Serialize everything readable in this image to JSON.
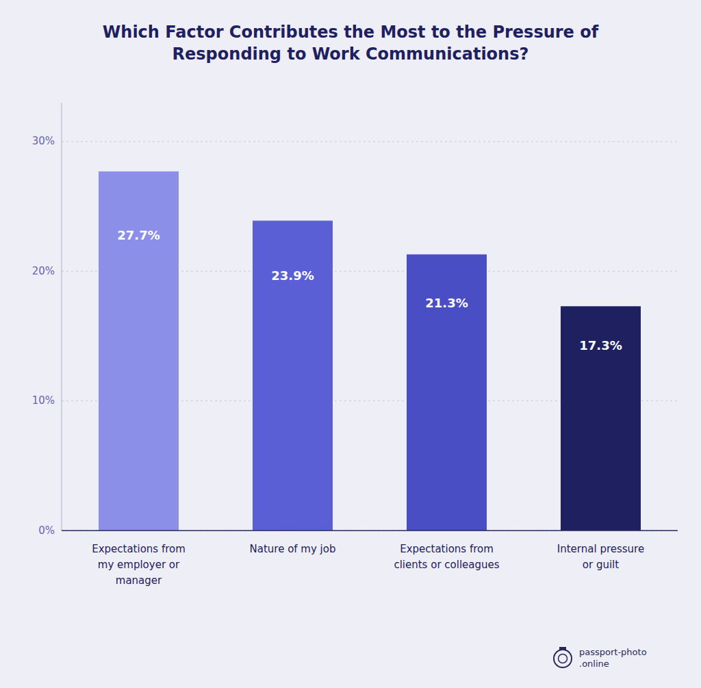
{
  "chart_data": {
    "type": "bar",
    "title": "Which Factor Contributes the Most to the Pressure of\nResponding to Work Communications?",
    "categories": [
      "Expectations from\nmy employer or\nmanager",
      "Nature of my job",
      "Expectations from\nclients or colleagues",
      "Internal pressure\nor guilt"
    ],
    "values": [
      27.7,
      23.9,
      21.3,
      17.3
    ],
    "value_labels": [
      "27.7%",
      "23.9%",
      "21.3%",
      "17.3%"
    ],
    "data_labels": true,
    "colors": [
      "#8B8FE8",
      "#5B5FD6",
      "#4A4EC4",
      "#1E2060"
    ],
    "ylim": [
      0,
      33
    ],
    "yticks": [
      {
        "value": 0,
        "label": "0%"
      },
      {
        "value": 10,
        "label": "10%"
      },
      {
        "value": 20,
        "label": "20%"
      },
      {
        "value": 30,
        "label": "30%"
      }
    ],
    "grid": true,
    "annotations": [
      "passport-photo\n.online"
    ]
  }
}
